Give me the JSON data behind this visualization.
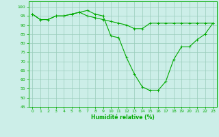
{
  "xlabel": "Humidité relative (%)",
  "background_color": "#cceee8",
  "grid_color": "#99ccbb",
  "line_color": "#00aa00",
  "xlim": [
    -0.5,
    23.5
  ],
  "ylim": [
    45,
    103
  ],
  "yticks": [
    45,
    50,
    55,
    60,
    65,
    70,
    75,
    80,
    85,
    90,
    95,
    100
  ],
  "xticks": [
    0,
    1,
    2,
    3,
    4,
    5,
    6,
    7,
    8,
    9,
    10,
    11,
    12,
    13,
    14,
    15,
    16,
    17,
    18,
    19,
    20,
    21,
    22,
    23
  ],
  "line1_x": [
    0,
    1,
    2,
    3,
    4,
    5,
    6,
    7,
    8,
    9,
    10,
    11,
    12,
    13,
    14,
    15,
    16,
    17,
    18,
    19,
    20,
    21,
    22,
    23
  ],
  "line1_y": [
    96,
    93,
    93,
    95,
    95,
    96,
    97,
    98,
    96,
    95,
    84,
    83,
    72,
    63,
    56,
    54,
    54,
    59,
    71,
    78,
    78,
    82,
    85,
    91
  ],
  "line2_x": [
    0,
    1,
    2,
    3,
    4,
    5,
    6,
    7,
    8,
    9,
    10,
    11,
    12,
    13,
    14,
    15,
    16,
    17,
    18,
    19,
    20,
    21,
    22,
    23
  ],
  "line2_y": [
    96,
    93,
    93,
    95,
    95,
    96,
    97,
    95,
    94,
    93,
    92,
    91,
    90,
    88,
    88,
    91,
    91,
    91,
    91,
    91,
    91,
    91,
    91,
    91
  ]
}
